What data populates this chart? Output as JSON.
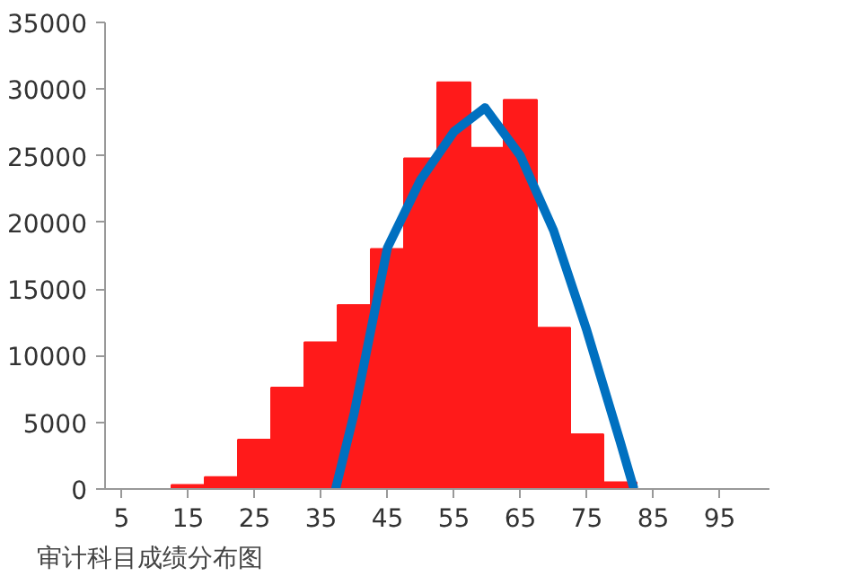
{
  "chart_data": {
    "type": "histogram",
    "annotations": [
      "审计科目成绩分布图"
    ],
    "bins": [
      2.5,
      7.5,
      12.5,
      17.5,
      22.5,
      27.5,
      32.5,
      37.5,
      42.5,
      47.5,
      52.5,
      57.5,
      62.5,
      67.5,
      72.5,
      77.5,
      82.5,
      87.5,
      92.5,
      97.5,
      102.5
    ],
    "values": [
      0,
      null,
      300,
      900,
      3700,
      7600,
      11000,
      13800,
      18000,
      24800,
      30500,
      25600,
      29200,
      12100,
      4100,
      500,
      null,
      0,
      0,
      0
    ],
    "color": "#ff1a1a",
    "series": [
      {
        "type": "line",
        "color": "#0070c0",
        "x": [
          37.2,
          40,
          45,
          50,
          55,
          59.7,
          65,
          70,
          75,
          80,
          82.1
        ],
        "values": [
          0,
          5700,
          18100,
          23200,
          26800,
          28600,
          25000,
          19400,
          11900,
          3600,
          0
        ]
      }
    ],
    "xlim": [
      2.5,
      102.5
    ],
    "xticks": [
      5,
      15,
      25,
      35,
      45,
      55,
      65,
      75,
      85,
      95
    ],
    "ylim": [
      0,
      35000
    ],
    "yticks": [
      0,
      5000,
      10000,
      15000,
      20000,
      25000,
      30000,
      35000
    ],
    "grid": false
  }
}
